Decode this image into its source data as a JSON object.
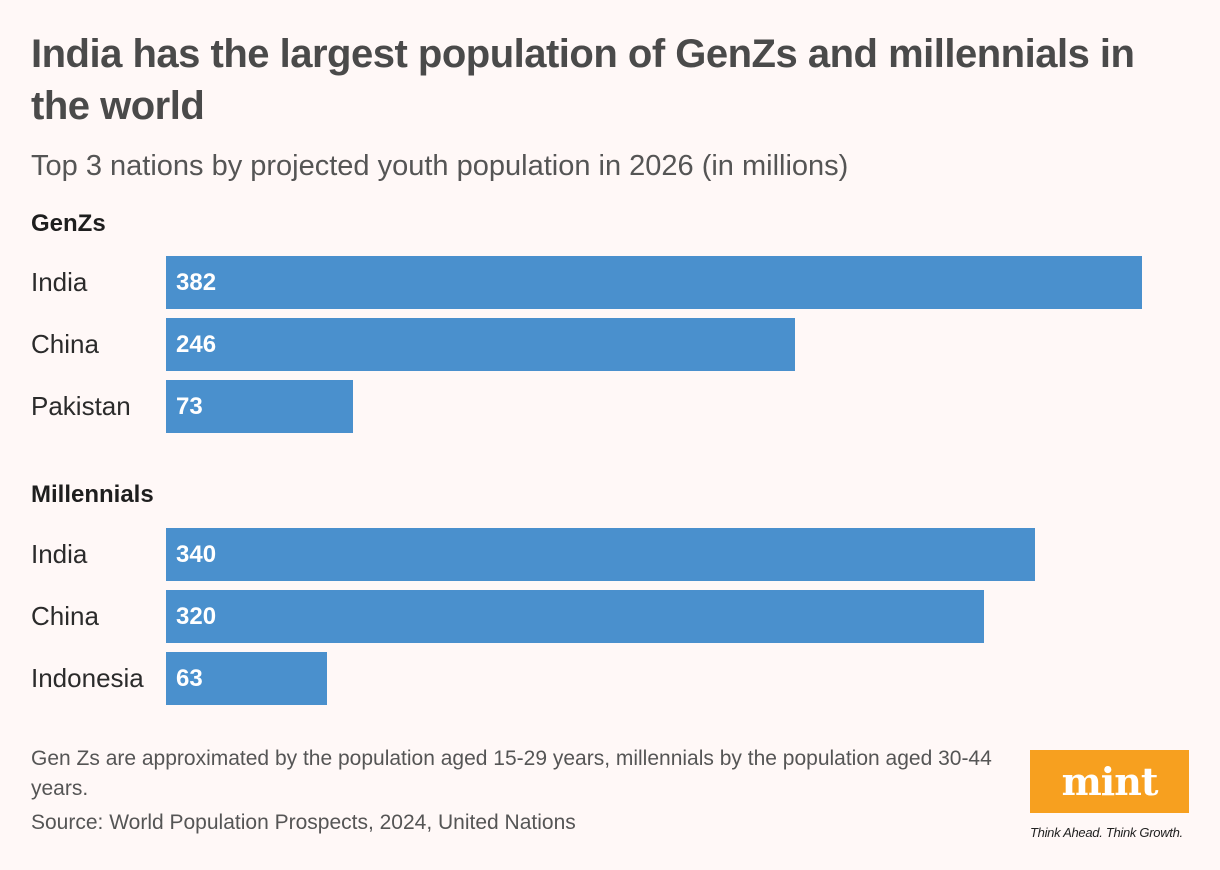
{
  "chart_data": [
    {
      "type": "bar",
      "orientation": "horizontal",
      "title": "India has the largest population of GenZs and millennials in the world",
      "subtitle": "Top 3 nations by projected youth population in 2026 (in millions)",
      "group": "GenZs",
      "categories": [
        "India",
        "China",
        "Pakistan"
      ],
      "values": [
        382,
        246,
        73
      ],
      "data_labels": true,
      "color": "#4a90cd",
      "xlim": [
        0,
        382
      ]
    },
    {
      "type": "bar",
      "orientation": "horizontal",
      "group": "Millennials",
      "categories": [
        "India",
        "China",
        "Indonesia"
      ],
      "values": [
        340,
        320,
        63
      ],
      "data_labels": true,
      "color": "#4a90cd",
      "xlim": [
        0,
        382
      ]
    }
  ],
  "header": {
    "title": "India has the largest population of GenZs and millennials in the world",
    "subtitle": "Top 3 nations by projected youth population in 2026 (in millions)"
  },
  "footer": {
    "note": "Gen Zs are approximated by the population aged 15-29 years, millennials by the population aged 30-44 years.",
    "source": "Source: World Population Prospects, 2024, United Nations"
  },
  "logo": {
    "text": "mint",
    "tagline": "Think Ahead. Think Growth.",
    "color": "#f7a01f"
  },
  "colors": {
    "background": "#fff8f7",
    "bar": "#4a90cd"
  }
}
